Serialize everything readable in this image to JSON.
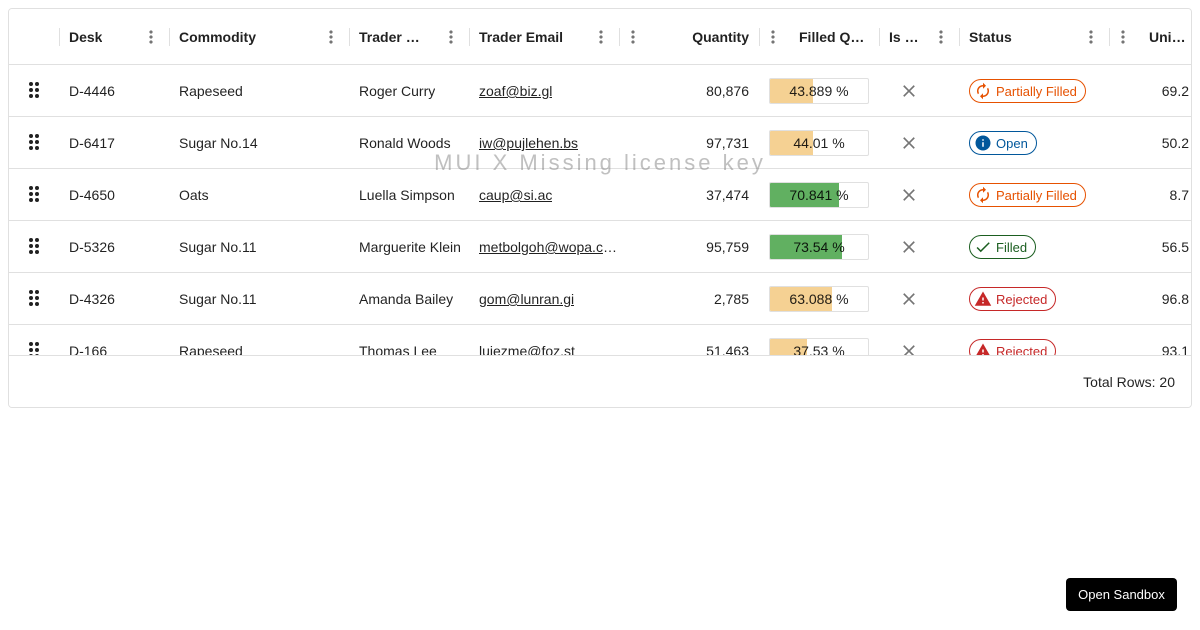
{
  "columns": [
    {
      "key": "desk",
      "label": "Desk"
    },
    {
      "key": "commodity",
      "label": "Commodity"
    },
    {
      "key": "trader_name",
      "label": "Trader Name"
    },
    {
      "key": "trader_email",
      "label": "Trader Email"
    },
    {
      "key": "quantity",
      "label": "Quantity"
    },
    {
      "key": "filled",
      "label": "Filled Quantity"
    },
    {
      "key": "is_filled",
      "label": "Is Filled"
    },
    {
      "key": "status",
      "label": "Status"
    },
    {
      "key": "unit_price",
      "label": "Unit Price"
    }
  ],
  "rows": [
    {
      "desk": "D-4446",
      "commodity": "Rapeseed",
      "trader_name": "Roger Curry",
      "trader_email": "zoaf@biz.gl",
      "quantity": "80,876",
      "filled_label": "43.889 %",
      "filled_fraction": 0.43889,
      "status": "Partially Filled",
      "status_type": "partial",
      "unit_price": "69.2"
    },
    {
      "desk": "D-6417",
      "commodity": "Sugar No.14",
      "trader_name": "Ronald Woods",
      "trader_email": "iw@pujlehen.bs",
      "quantity": "97,731",
      "filled_label": "44.01 %",
      "filled_fraction": 0.4401,
      "status": "Open",
      "status_type": "open",
      "unit_price": "50.2"
    },
    {
      "desk": "D-4650",
      "commodity": "Oats",
      "trader_name": "Luella Simpson",
      "trader_email": "caup@si.ac",
      "quantity": "37,474",
      "filled_label": "70.841 %",
      "filled_fraction": 0.70841,
      "status": "Partially Filled",
      "status_type": "partial",
      "unit_price": "8.7"
    },
    {
      "desk": "D-5326",
      "commodity": "Sugar No.11",
      "trader_name": "Marguerite Klein",
      "trader_email": "metbolgoh@wopa.com",
      "quantity": "95,759",
      "filled_label": "73.54 %",
      "filled_fraction": 0.7354,
      "status": "Filled",
      "status_type": "filled",
      "unit_price": "56.5"
    },
    {
      "desk": "D-4326",
      "commodity": "Sugar No.11",
      "trader_name": "Amanda Bailey",
      "trader_email": "gom@lunran.gi",
      "quantity": "2,785",
      "filled_label": "63.088 %",
      "filled_fraction": 0.63088,
      "status": "Rejected",
      "status_type": "rejected",
      "unit_price": "96.8"
    },
    {
      "desk": "D-166",
      "commodity": "Rapeseed",
      "trader_name": "Thomas Lee",
      "trader_email": "luiezme@foz.st",
      "quantity": "51,463",
      "filled_label": "37.53 %",
      "filled_fraction": 0.3753,
      "status": "Rejected",
      "status_type": "rejected",
      "unit_price": "93.1"
    }
  ],
  "footer": {
    "total_rows": "Total Rows: 20"
  },
  "watermark": "MUI X Missing license key",
  "sandbox_button": "Open Sandbox",
  "colors": {
    "progress_low": "#f5d193",
    "progress_high": "#61b061",
    "partial": "#e65100",
    "open": "#01579b",
    "filled": "#1b5e20",
    "rejected": "#c62828"
  }
}
